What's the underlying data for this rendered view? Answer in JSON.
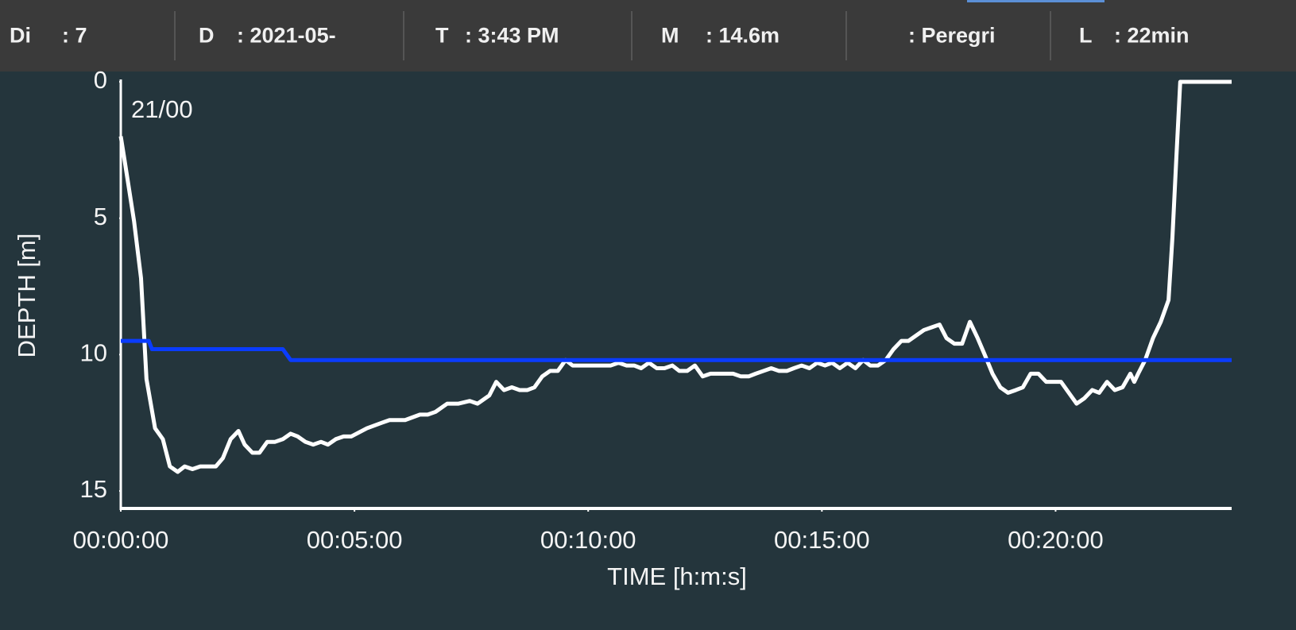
{
  "header": {
    "items": [
      {
        "label": "Di",
        "value": ": 7"
      },
      {
        "label": "D",
        "value": ": 2021-05-"
      },
      {
        "label": "T",
        "value": ": 3:43 PM"
      },
      {
        "label": "M",
        "value": ": 14.6m"
      },
      {
        "value": ": Peregri"
      },
      {
        "label": "L",
        "value": ": 22min"
      }
    ]
  },
  "chart_data": {
    "type": "line",
    "annotation": "21/00",
    "x_label": "TIME [h:m:s]",
    "y_label": "DEPTH [m]",
    "xlim": [
      0,
      1426
    ],
    "xticks": [
      {
        "value": 0,
        "label": "00:00:00"
      },
      {
        "value": 300,
        "label": "00:05:00"
      },
      {
        "value": 600,
        "label": "00:10:00"
      },
      {
        "value": 900,
        "label": "00:15:00"
      },
      {
        "value": 1200,
        "label": "00:20:00"
      }
    ],
    "ylim": [
      0,
      15.6
    ],
    "y_inverted": true,
    "yticks": [
      0,
      5,
      10,
      15
    ],
    "series": [
      {
        "color": "#ffffff",
        "x": [
          0,
          5,
          17,
          26,
          33,
          44,
          54,
          63,
          73,
          82,
          92,
          102,
          122,
          131,
          141,
          151,
          159,
          169,
          178,
          188,
          198,
          208,
          218,
          227,
          237,
          247,
          257,
          266,
          276,
          286,
          296,
          316,
          335,
          345,
          365,
          384,
          394,
          404,
          419,
          433,
          448,
          458,
          473,
          482,
          492,
          502,
          512,
          522,
          531,
          541,
          551,
          561,
          571,
          580,
          590,
          610,
          629,
          639,
          649,
          659,
          668,
          678,
          688,
          698,
          708,
          717,
          727,
          737,
          747,
          757,
          766,
          786,
          796,
          806,
          815,
          825,
          835,
          845,
          855,
          864,
          874,
          884,
          894,
          904,
          913,
          923,
          933,
          943,
          953,
          962,
          972,
          982,
          992,
          1002,
          1011,
          1021,
          1031,
          1041,
          1051,
          1060,
          1070,
          1080,
          1090,
          1100,
          1109,
          1119,
          1129,
          1139,
          1149,
          1158,
          1168,
          1178,
          1188,
          1198,
          1207,
          1217,
          1227,
          1237,
          1247,
          1256,
          1266,
          1276,
          1286,
          1296,
          1301,
          1306,
          1315,
          1325,
          1335,
          1345,
          1350,
          1355,
          1360,
          1426
        ],
        "values": [
          2.0,
          2.9,
          5.1,
          7.2,
          10.9,
          12.7,
          13.1,
          14.1,
          14.3,
          14.1,
          14.2,
          14.1,
          14.1,
          13.8,
          13.1,
          12.8,
          13.3,
          13.6,
          13.6,
          13.2,
          13.2,
          13.1,
          12.9,
          13.0,
          13.2,
          13.3,
          13.2,
          13.3,
          13.1,
          13.0,
          13.0,
          12.7,
          12.5,
          12.4,
          12.4,
          12.2,
          12.2,
          12.1,
          11.8,
          11.8,
          11.7,
          11.8,
          11.5,
          11.0,
          11.3,
          11.2,
          11.3,
          11.3,
          11.2,
          10.8,
          10.6,
          10.6,
          10.2,
          10.4,
          10.4,
          10.4,
          10.4,
          10.3,
          10.4,
          10.4,
          10.5,
          10.3,
          10.5,
          10.5,
          10.4,
          10.6,
          10.6,
          10.4,
          10.8,
          10.7,
          10.7,
          10.7,
          10.8,
          10.8,
          10.7,
          10.6,
          10.5,
          10.6,
          10.6,
          10.5,
          10.4,
          10.5,
          10.3,
          10.4,
          10.3,
          10.5,
          10.3,
          10.5,
          10.2,
          10.4,
          10.4,
          10.2,
          9.8,
          9.5,
          9.5,
          9.3,
          9.1,
          9.0,
          8.9,
          9.4,
          9.6,
          9.6,
          8.8,
          9.4,
          10.0,
          10.7,
          11.2,
          11.4,
          11.3,
          11.2,
          10.7,
          10.7,
          11.0,
          11.0,
          11.0,
          11.4,
          11.8,
          11.6,
          11.3,
          11.4,
          11.0,
          11.3,
          11.2,
          10.7,
          11.0,
          10.7,
          10.2,
          9.4,
          8.8,
          8.0,
          5.7,
          2.8,
          0,
          0
        ]
      },
      {
        "color": "#0a3cff",
        "x": [
          0,
          36,
          40,
          208,
          218,
          1426
        ],
        "values": [
          9.5,
          9.5,
          9.8,
          9.8,
          10.2,
          10.2
        ]
      }
    ]
  }
}
